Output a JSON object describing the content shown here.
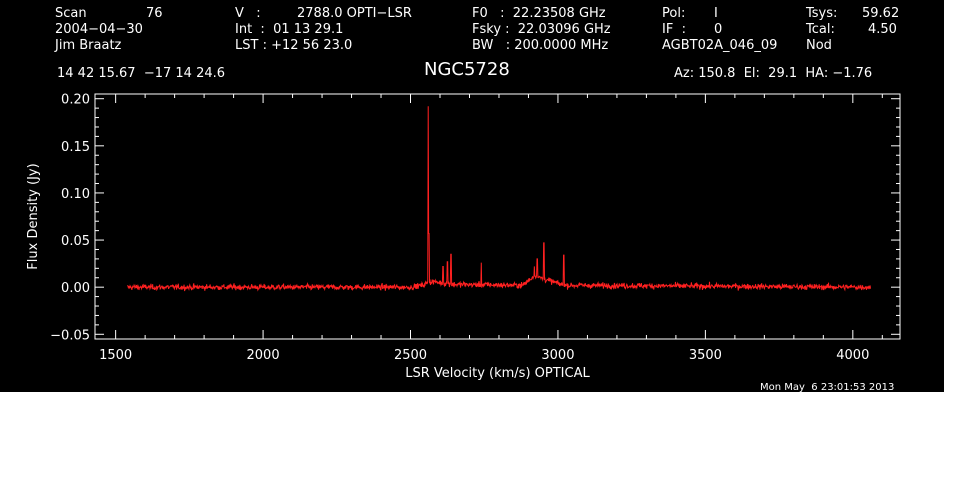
{
  "header": {
    "row1": [
      "Scan",
      "76",
      "V   :",
      "2788.0 OPTI−LSR",
      "F0   :  22.23508 GHz",
      "Pol:",
      "I",
      "Tsys:",
      "59.62"
    ],
    "row2": [
      "2004−04−30",
      "Int  :  01 13 29.1",
      "Fsky :  22.03096 GHz",
      "IF  :",
      "0",
      "Tcal:",
      "4.50"
    ],
    "row3": [
      "Jim Braatz",
      "LST : +12 56 23.0",
      "BW   : 200.0000 MHz",
      "AGBT02A_046_09",
      "Nod"
    ],
    "coords": "14 42 15.67  −17 14 24.6",
    "object": "NGC5728",
    "az_el_ha": "Az: 150.8  El:  29.1  HA: −1.76",
    "timestamp": "Mon May  6 23:01:53 2013"
  },
  "chart_data": {
    "type": "line",
    "title": "NGC5728",
    "xlabel": "LSR Velocity (km/s) OPTICAL",
    "ylabel": "Flux Density (Jy)",
    "xlim": [
      1430,
      4160
    ],
    "ylim": [
      -0.055,
      0.205
    ],
    "x_ticks": [
      1500,
      2000,
      2500,
      3000,
      3500,
      4000
    ],
    "y_ticks": [
      -0.05,
      0.0,
      0.05,
      0.1,
      0.15,
      0.2
    ],
    "y_tick_labels": [
      "−0.05",
      "0.00",
      "0.05",
      "0.10",
      "0.15",
      "0.20"
    ],
    "grid": false,
    "series": [
      {
        "color": "#ff2020",
        "x_range": [
          1540,
          4060
        ],
        "noise_rms": 0.003,
        "baseline": [
          {
            "x": 1540,
            "y": 0.0
          },
          {
            "x": 2500,
            "y": 0.0
          },
          {
            "x": 2540,
            "y": 0.002
          },
          {
            "x": 2570,
            "y": 0.006
          },
          {
            "x": 2640,
            "y": 0.003
          },
          {
            "x": 2880,
            "y": 0.002
          },
          {
            "x": 2920,
            "y": 0.012
          },
          {
            "x": 2960,
            "y": 0.008
          },
          {
            "x": 3020,
            "y": 0.002
          },
          {
            "x": 4060,
            "y": 0.0
          }
        ],
        "peaks": [
          {
            "x": 2560,
            "y": 0.192
          },
          {
            "x": 2562,
            "y": 0.057
          },
          {
            "x": 2610,
            "y": 0.022
          },
          {
            "x": 2625,
            "y": 0.027
          },
          {
            "x": 2637,
            "y": 0.035
          },
          {
            "x": 2740,
            "y": 0.026
          },
          {
            "x": 2920,
            "y": 0.022
          },
          {
            "x": 2930,
            "y": 0.03
          },
          {
            "x": 2952,
            "y": 0.047
          },
          {
            "x": 3020,
            "y": 0.034
          }
        ]
      }
    ]
  },
  "colors": {
    "background": "#000000",
    "foreground": "#ffffff",
    "trace": "#ff2020"
  }
}
